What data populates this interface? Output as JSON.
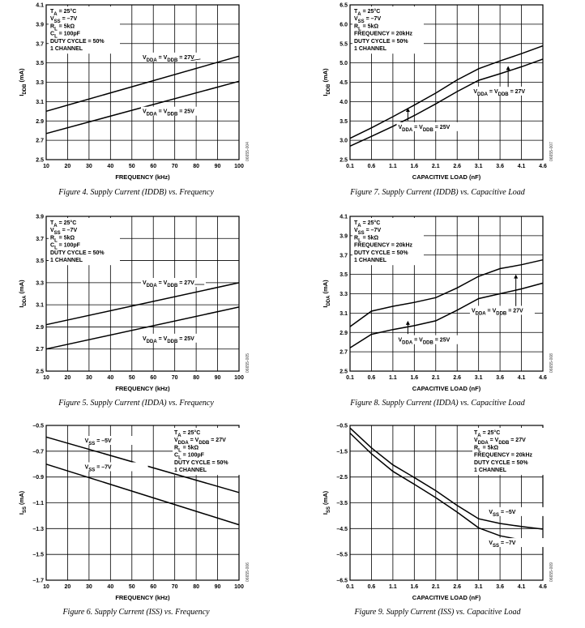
{
  "charts": [
    {
      "id": "fig4",
      "type": "line",
      "caption": "Figure 4. Supply Current (IDDB) vs. Frequency",
      "xlabel": "FREQUENCY (kHz)",
      "ylabel": "IDDB (mA)",
      "ylabel_main": "I",
      "ylabel_sub": "DDB",
      "ylabel_unit": " (mA)",
      "xticks": [
        "10",
        "20",
        "30",
        "40",
        "50",
        "60",
        "70",
        "80",
        "90",
        "100"
      ],
      "yticks": [
        "2.5",
        "2.7",
        "2.9",
        "3.1",
        "3.3",
        "3.5",
        "3.7",
        "3.9",
        "4.1"
      ],
      "xlim": [
        10,
        100
      ],
      "ylim": [
        2.5,
        4.1
      ],
      "figcode": "06655-004",
      "conditions": [
        "TA = 25°C",
        "VSS = –7V",
        "RL = 5kΩ",
        "CL = 100pF",
        "DUTY CYCLE = 50%",
        "1 CHANNEL"
      ],
      "series": [
        {
          "name": "VDDA = VDDB = 27V",
          "x": [
            10,
            100
          ],
          "y": [
            3.0,
            3.57
          ]
        },
        {
          "name": "VDDA = VDDB = 25V",
          "x": [
            10,
            100
          ],
          "y": [
            2.77,
            3.31
          ]
        }
      ]
    },
    {
      "id": "fig5",
      "type": "line",
      "caption": "Figure 5. Supply Current (IDDA) vs. Frequency",
      "xlabel": "FREQUENCY (kHz)",
      "ylabel": "IDDA (mA)",
      "ylabel_main": "I",
      "ylabel_sub": "DDA",
      "ylabel_unit": " (mA)",
      "xticks": [
        "10",
        "20",
        "30",
        "40",
        "50",
        "60",
        "70",
        "80",
        "90",
        "100"
      ],
      "yticks": [
        "2.5",
        "2.7",
        "2.9",
        "3.1",
        "3.3",
        "3.5",
        "3.7",
        "3.9"
      ],
      "xlim": [
        10,
        100
      ],
      "ylim": [
        2.5,
        3.9
      ],
      "figcode": "06655-005",
      "conditions": [
        "TA = 25°C",
        "VSS = –7V",
        "RL = 5kΩ",
        "CL = 100pF",
        "DUTY CYCLE = 50%",
        "1 CHANNEL"
      ],
      "series": [
        {
          "name": "VDDA = VDDB = 27V",
          "x": [
            10,
            100
          ],
          "y": [
            2.92,
            3.3
          ]
        },
        {
          "name": "VDDA = VDDB = 25V",
          "x": [
            10,
            100
          ],
          "y": [
            2.7,
            3.08
          ]
        }
      ]
    },
    {
      "id": "fig6",
      "type": "line",
      "caption": "Figure 6. Supply Current (ISS) vs. Frequency",
      "xlabel": "FREQUENCY (kHz)",
      "ylabel": "ISS (mA)",
      "ylabel_main": "I",
      "ylabel_sub": "SS",
      "ylabel_unit": " (mA)",
      "xticks": [
        "10",
        "20",
        "30",
        "40",
        "50",
        "60",
        "70",
        "80",
        "90",
        "100"
      ],
      "yticks": [
        "–0.5",
        "–0.7",
        "–0.9",
        "–1.1",
        "–1.3",
        "–1.5",
        "–1.7"
      ],
      "xlim": [
        10,
        100
      ],
      "ylim": [
        -1.7,
        -0.5
      ],
      "figcode": "06655-006",
      "conditions": [
        "TA = 25°C",
        "VDDA = VDDB = 27V",
        "RL = 5kΩ",
        "CL = 100pF",
        "DUTY CYCLE = 50%",
        "1 CHANNEL"
      ],
      "series": [
        {
          "name": "VSS = –5V",
          "x": [
            10,
            100
          ],
          "y": [
            -0.59,
            -1.02
          ]
        },
        {
          "name": "VSS = –7V",
          "x": [
            10,
            100
          ],
          "y": [
            -0.8,
            -1.27
          ]
        }
      ]
    },
    {
      "id": "fig7",
      "type": "line",
      "caption": "Figure 7. Supply Current (IDDB) vs. Capacitive Load",
      "xlabel": "CAPACITIVE LOAD (nF)",
      "ylabel": "IDDB (mA)",
      "ylabel_main": "I",
      "ylabel_sub": "DDB",
      "ylabel_unit": " (mA)",
      "xticks": [
        "0.1",
        "0.6",
        "1.1",
        "1.6",
        "2.1",
        "2.6",
        "3.1",
        "3.6",
        "4.1",
        "4.6"
      ],
      "yticks": [
        "2.5",
        "3.0",
        "3.5",
        "4.0",
        "4.5",
        "5.0",
        "5.5",
        "6.0",
        "6.5"
      ],
      "xlim": [
        0.1,
        4.6
      ],
      "ylim": [
        2.5,
        6.5
      ],
      "figcode": "06655-007",
      "conditions": [
        "TA = 25°C",
        "VSS = –7V",
        "RL = 5kΩ",
        "FREQUENCY = 20kHz",
        "DUTY CYCLE = 50%",
        "1 CHANNEL"
      ],
      "series": [
        {
          "name": "VDDA = VDDB = 27V",
          "x": [
            0.1,
            0.6,
            1.1,
            1.6,
            2.1,
            2.6,
            3.1,
            3.6,
            4.1,
            4.6
          ],
          "y": [
            3.05,
            3.32,
            3.61,
            3.91,
            4.22,
            4.56,
            4.85,
            5.05,
            5.24,
            5.44
          ]
        },
        {
          "name": "VDDA = VDDB = 25V",
          "x": [
            0.1,
            0.6,
            1.1,
            1.6,
            2.1,
            2.6,
            3.1,
            3.6,
            4.1,
            4.6
          ],
          "y": [
            2.85,
            3.1,
            3.36,
            3.64,
            3.94,
            4.26,
            4.55,
            4.72,
            4.9,
            5.1
          ]
        }
      ]
    },
    {
      "id": "fig8",
      "type": "line",
      "caption": "Figure 8. Supply Current (IDDA) vs. Capacitive Load",
      "xlabel": "CAPACITIVE LOAD (nF)",
      "ylabel": "IDDA (mA)",
      "ylabel_main": "I",
      "ylabel_sub": "DDA",
      "ylabel_unit": " (mA)",
      "xticks": [
        "0.1",
        "0.6",
        "1.1",
        "1.6",
        "2.1",
        "2.6",
        "3.1",
        "3.6",
        "4.1",
        "4.6"
      ],
      "yticks": [
        "2.5",
        "2.7",
        "2.9",
        "3.1",
        "3.3",
        "3.5",
        "3.7",
        "3.9",
        "4.1"
      ],
      "xlim": [
        0.1,
        4.6
      ],
      "ylim": [
        2.5,
        4.1
      ],
      "figcode": "06655-008",
      "conditions": [
        "TA = 25°C",
        "VSS = –7V",
        "RL = 5kΩ",
        "FREQUENCY = 20kHz",
        "DUTY CYCLE = 50%",
        "1 CHANNEL"
      ],
      "series": [
        {
          "name": "VDDA = VDDB = 27V",
          "x": [
            0.1,
            0.6,
            1.1,
            1.6,
            2.1,
            2.6,
            3.1,
            3.6,
            4.1,
            4.6
          ],
          "y": [
            2.96,
            3.12,
            3.17,
            3.21,
            3.26,
            3.36,
            3.48,
            3.56,
            3.6,
            3.65
          ]
        },
        {
          "name": "VDDA = VDDB = 25V",
          "x": [
            0.1,
            0.6,
            1.1,
            1.6,
            2.1,
            2.6,
            3.1,
            3.6,
            4.1,
            4.6
          ],
          "y": [
            2.74,
            2.88,
            2.93,
            2.97,
            3.02,
            3.13,
            3.25,
            3.3,
            3.35,
            3.41
          ]
        }
      ]
    },
    {
      "id": "fig9",
      "type": "line",
      "caption": "Figure 9. Supply Current (ISS) vs. Capacitive Load",
      "xlabel": "CAPACITIVE LOAD (nF)",
      "ylabel": "ISS (mA)",
      "ylabel_main": "I",
      "ylabel_sub": "SS",
      "ylabel_unit": " (mA)",
      "xticks": [
        "0.1",
        "0.6",
        "1.1",
        "1.6",
        "2.1",
        "2.6",
        "3.1",
        "3.6",
        "4.1",
        "4.6"
      ],
      "yticks": [
        "–0.5",
        "–1.5",
        "–2.5",
        "–3.5",
        "–4.5",
        "–5.5",
        "–6.5"
      ],
      "xlim": [
        0.1,
        4.6
      ],
      "ylim": [
        -6.5,
        -0.5
      ],
      "figcode": "06655-009",
      "conditions": [
        "TA = 25°C",
        "VDDA = VDDB = 27V",
        "RL = 5kΩ",
        "FREQUENCY = 20kHz",
        "DUTY CYCLE = 50%",
        "1 CHANNEL"
      ],
      "series": [
        {
          "name": "VSS = –5V",
          "x": [
            0.1,
            0.6,
            1.1,
            1.6,
            2.1,
            2.6,
            3.1,
            3.6,
            4.1,
            4.6
          ],
          "y": [
            -0.6,
            -1.37,
            -2.03,
            -2.52,
            -3.03,
            -3.6,
            -4.12,
            -4.3,
            -4.42,
            -4.52
          ]
        },
        {
          "name": "VSS = –7V",
          "x": [
            0.1,
            0.6,
            1.1,
            1.6,
            2.1,
            2.6,
            3.1,
            3.6,
            4.1,
            4.6
          ],
          "y": [
            -0.8,
            -1.6,
            -2.28,
            -2.78,
            -3.3,
            -3.86,
            -4.47,
            -4.78,
            -4.94,
            -5.08
          ]
        }
      ]
    }
  ]
}
